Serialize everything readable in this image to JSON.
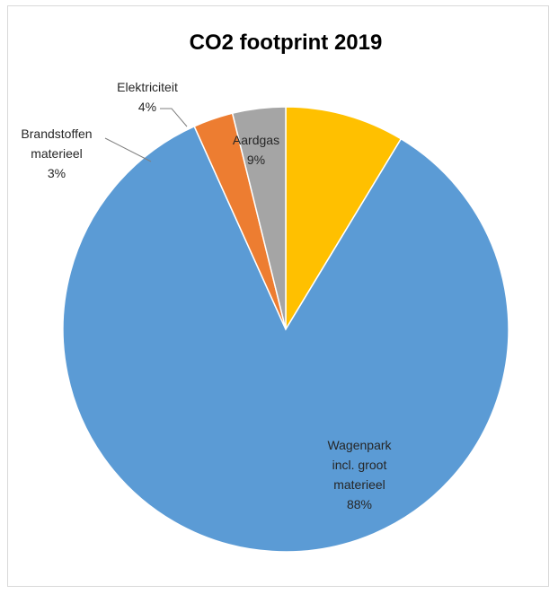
{
  "chart_data": {
    "type": "pie",
    "title": "CO2 footprint 2019",
    "slices": [
      {
        "label": [
          "Aardgas"
        ],
        "value": 9,
        "value_label": "9%",
        "color": "#ffc000"
      },
      {
        "label": [
          "Wagenpark",
          "incl. groot",
          "materieel"
        ],
        "value": 88,
        "value_label": "88%",
        "color": "#5b9bd5"
      },
      {
        "label": [
          "Brandstoffen",
          "materieel"
        ],
        "value": 3,
        "value_label": "3%",
        "color": "#ed7d31"
      },
      {
        "label": [
          "Elektriciteit"
        ],
        "value": 4,
        "value_label": "4%",
        "color": "#a5a5a5"
      }
    ],
    "start_angle": "12 o'clock",
    "direction": "clockwise",
    "legend": "none"
  }
}
